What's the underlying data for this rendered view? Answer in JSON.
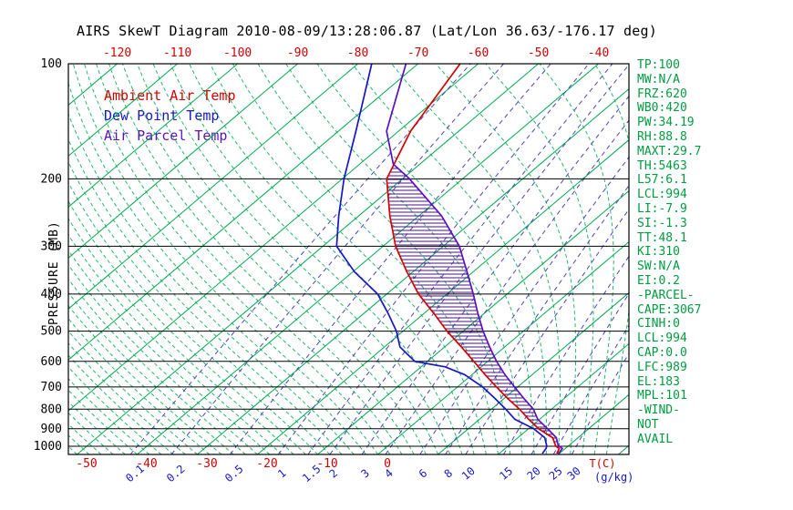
{
  "title": "AIRS SkewT Diagram 2010-08-09/13:28:06.87 (Lat/Lon 36.63/-176.17 deg)",
  "legend": [
    {
      "label": "Ambient Air Temp",
      "color": "#d40000"
    },
    {
      "label": "Dew Point Temp",
      "color": "#1616c8"
    },
    {
      "label": "Air Parcel Temp",
      "color": "#5b10c0"
    }
  ],
  "axes": {
    "pressure_label": "PRESSURE (MB)"
  },
  "stats_panel": [
    "TP:100",
    "MW:N/A",
    "FRZ:620",
    "WB0:420",
    "PW:34.19",
    "RH:88.8",
    "MAXT:29.7",
    "TH:5463",
    "L57:6.1",
    "LCL:994",
    "LI:-7.9",
    "SI:-1.3",
    "TT:48.1",
    "KI:310",
    "SW:N/A",
    "EI:0.2",
    "-PARCEL-",
    "CAPE:3067",
    "CINH:0",
    "LCL:994",
    "CAP:0.0",
    "LFC:989",
    "EL:183",
    "MPL:101",
    "-WIND-",
    "NOT",
    "AVAIL"
  ],
  "chart_data": {
    "type": "skewt",
    "title": "AIRS SkewT Diagram 2010-08-09/13:28:06.87 (Lat/Lon 36.63/-176.17 deg)",
    "pressure_axis": {
      "label": "PRESSURE (MB)",
      "scale": "log",
      "range_mb": [
        100,
        1050
      ],
      "ticks": [
        100,
        200,
        300,
        400,
        500,
        600,
        700,
        800,
        900,
        1000
      ],
      "tick_color": "#000000"
    },
    "temp_axis": {
      "unit_label": "T(C)",
      "bottom_ticks_c": [
        -50,
        -40,
        -30,
        -20,
        -10,
        0
      ],
      "top_ticks_c": [
        -120,
        -110,
        -100,
        -90,
        -80,
        -70,
        -60,
        -50,
        -40
      ],
      "tick_color": "#d00000"
    },
    "isotherms": {
      "start_c": -140,
      "end_c": 40,
      "step_c": 10,
      "color": "#00a94f",
      "style": "solid"
    },
    "moist_adiabats": {
      "start_c": -62,
      "end_c": 38,
      "step_c": 2,
      "color": "#00a94f",
      "style": "dashed"
    },
    "mixing_ratio_lines": {
      "unit_label": "(g/kg)",
      "values_g_kg": [
        0.1,
        0.2,
        0.5,
        1,
        1.5,
        2,
        3,
        4,
        6,
        8,
        10,
        15,
        20,
        25,
        30
      ],
      "color": "#4b44bc",
      "label_color": "#1616c8",
      "style": "dashed"
    },
    "series": [
      {
        "name": "Ambient Air Temp",
        "color": "#d40000",
        "points": [
          [
            1045,
            29.6
          ],
          [
            1013,
            29.0
          ],
          [
            1000,
            28.0
          ],
          [
            950,
            25.8
          ],
          [
            900,
            21.7
          ],
          [
            850,
            18.2
          ],
          [
            800,
            14.7
          ],
          [
            750,
            10.6
          ],
          [
            700,
            6.5
          ],
          [
            650,
            2.2
          ],
          [
            600,
            -2.3
          ],
          [
            550,
            -7.2
          ],
          [
            500,
            -12.7
          ],
          [
            450,
            -18.3
          ],
          [
            400,
            -24.7
          ],
          [
            350,
            -31.0
          ],
          [
            300,
            -37.9
          ],
          [
            250,
            -44.8
          ],
          [
            200,
            -52.6
          ],
          [
            150,
            -58.0
          ],
          [
            100,
            -63.0
          ]
        ]
      },
      {
        "name": "Dew Point Temp",
        "color": "#1616c8",
        "points": [
          [
            1045,
            27.2
          ],
          [
            1013,
            26.8
          ],
          [
            1000,
            26.5
          ],
          [
            950,
            24.5
          ],
          [
            900,
            20.9
          ],
          [
            850,
            15.9
          ],
          [
            800,
            12.4
          ],
          [
            750,
            8.5
          ],
          [
            700,
            4.2
          ],
          [
            650,
            -1.2
          ],
          [
            620,
            -6.0
          ],
          [
            600,
            -12.1
          ],
          [
            550,
            -17.4
          ],
          [
            500,
            -21.1
          ],
          [
            450,
            -25.9
          ],
          [
            400,
            -31.5
          ],
          [
            350,
            -39.7
          ],
          [
            300,
            -47.7
          ],
          [
            250,
            -53.3
          ],
          [
            200,
            -59.7
          ],
          [
            150,
            -67.1
          ],
          [
            100,
            -77.7
          ]
        ]
      },
      {
        "name": "Air Parcel Temp",
        "color": "#5b10c0",
        "points": [
          [
            1045,
            29.9
          ],
          [
            1013,
            29.5
          ],
          [
            1000,
            28.6
          ],
          [
            994,
            28.2
          ],
          [
            950,
            26.4
          ],
          [
            900,
            23.2
          ],
          [
            850,
            19.7
          ],
          [
            800,
            17.0
          ],
          [
            750,
            13.3
          ],
          [
            700,
            9.5
          ],
          [
            650,
            5.5
          ],
          [
            600,
            1.5
          ],
          [
            550,
            -2.5
          ],
          [
            500,
            -6.7
          ],
          [
            450,
            -11.0
          ],
          [
            400,
            -15.6
          ],
          [
            350,
            -21.0
          ],
          [
            300,
            -27.3
          ],
          [
            250,
            -36.2
          ],
          [
            200,
            -48.8
          ],
          [
            183,
            -54.4
          ],
          [
            150,
            -62.0
          ],
          [
            100,
            -72.0
          ]
        ]
      }
    ],
    "cape_hatch": {
      "between": [
        "Ambient Air Temp",
        "Air Parcel Temp"
      ],
      "from_mb": 989,
      "to_mb": 183,
      "color": "#4a1080"
    }
  }
}
